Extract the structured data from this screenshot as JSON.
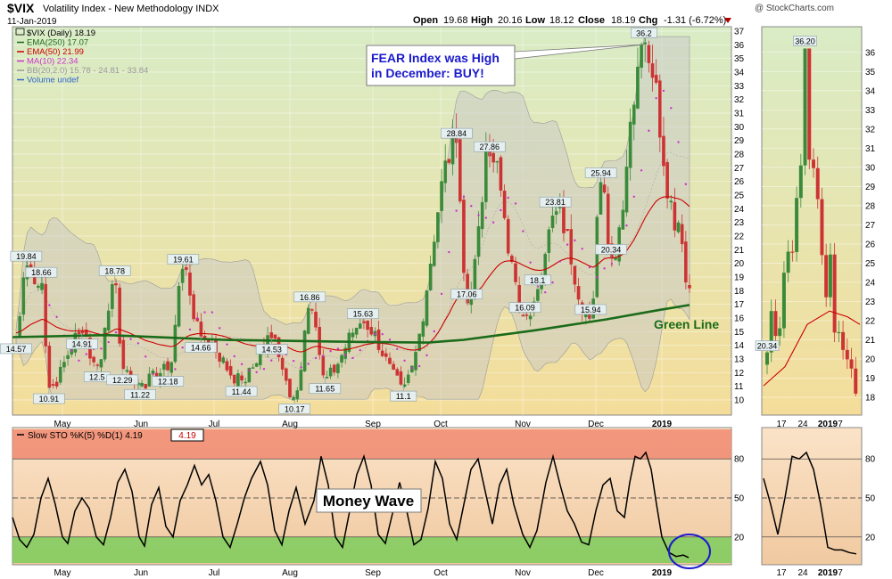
{
  "header": {
    "symbol": "$VIX",
    "name": "Volatility Index - New Methodology INDX",
    "date": "11-Jan-2019",
    "copyright": "@ StockCharts.com",
    "open_label": "Open",
    "open": "19.68",
    "high_label": "High",
    "high": "20.16",
    "low_label": "Low",
    "low": "18.12",
    "close_label": "Close",
    "close": "18.19",
    "chg_label": "Chg",
    "chg": "-1.31 (-6.72%)"
  },
  "legend": [
    {
      "text": "$VIX (Daily) 18.19",
      "color": "#000000"
    },
    {
      "text": "EMA(250) 17.07",
      "color": "#1a6b1a"
    },
    {
      "text": "EMA(50) 21.99",
      "color": "#cc0000"
    },
    {
      "text": "MA(10) 22.34",
      "color": "#cc33cc"
    },
    {
      "text": "BB(20,2.0) 15.78 - 24.81 - 33.84",
      "color": "#999999"
    },
    {
      "text": "Volume undef",
      "color": "#3366cc"
    }
  ],
  "annotations": {
    "callout_line1": "FEAR Index was High",
    "callout_line2": "in December: BUY!",
    "green_line": "Green Line",
    "money_wave": "Money Wave"
  },
  "stoch_legend": {
    "text": "Slow STO %K(5) %D(1) 4.19",
    "value": "4.19"
  },
  "colors": {
    "up": "#3a8a3a",
    "down": "#cc3333",
    "ema250": "#1a6b1a",
    "ema50": "#cc0000",
    "ma10": "#cc33cc",
    "bb_fill": "#c8c8c8",
    "overbought": "#f08a70",
    "oversold": "#7ccc5c",
    "callout": "#1a1acc",
    "circle": "#1a1acc"
  },
  "chart_data": [
    {
      "type": "candlestick",
      "title": "$VIX (Daily)",
      "x_labels": [
        "May",
        "Jun",
        "Jul",
        "Aug",
        "Sep",
        "Oct",
        "Nov",
        "Dec",
        "2019"
      ],
      "y_ticks": [
        10,
        11,
        12,
        13,
        14,
        15,
        16,
        17,
        18,
        19,
        20,
        21,
        22,
        23,
        24,
        25,
        26,
        27,
        28,
        29,
        30,
        31,
        32,
        33,
        34,
        35,
        36,
        37
      ],
      "ylim": [
        10,
        37
      ],
      "date_range": [
        "2018-04-20",
        "2019-01-11"
      ],
      "labeled_points": [
        {
          "date": "2018-04-20",
          "value": 14.57
        },
        {
          "date": "2018-04-24",
          "value": 19.84
        },
        {
          "date": "2018-04-30",
          "value": 18.66
        },
        {
          "date": "2018-05-03",
          "value": 10.91
        },
        {
          "date": "2018-05-16",
          "value": 14.91
        },
        {
          "date": "2018-05-22",
          "value": 12.5
        },
        {
          "date": "2018-05-29",
          "value": 18.78
        },
        {
          "date": "2018-06-01",
          "value": 12.29
        },
        {
          "date": "2018-06-08",
          "value": 11.22
        },
        {
          "date": "2018-06-19",
          "value": 12.18
        },
        {
          "date": "2018-06-25",
          "value": 19.61
        },
        {
          "date": "2018-07-02",
          "value": 14.66
        },
        {
          "date": "2018-07-18",
          "value": 11.44
        },
        {
          "date": "2018-07-30",
          "value": 14.53
        },
        {
          "date": "2018-08-08",
          "value": 10.17
        },
        {
          "date": "2018-08-14",
          "value": 16.86
        },
        {
          "date": "2018-08-20",
          "value": 11.65
        },
        {
          "date": "2018-09-04",
          "value": 15.63
        },
        {
          "date": "2018-09-20",
          "value": 11.1
        },
        {
          "date": "2018-10-11",
          "value": 28.84
        },
        {
          "date": "2018-10-15",
          "value": 17.06
        },
        {
          "date": "2018-10-24",
          "value": 27.86
        },
        {
          "date": "2018-11-07",
          "value": 16.09
        },
        {
          "date": "2018-11-12",
          "value": 18.1
        },
        {
          "date": "2018-11-19",
          "value": 23.81
        },
        {
          "date": "2018-12-03",
          "value": 15.94
        },
        {
          "date": "2018-12-07",
          "value": 25.94
        },
        {
          "date": "2018-12-11",
          "value": 20.34
        },
        {
          "date": "2018-12-24",
          "value": 36.2
        }
      ],
      "series": [
        {
          "name": "EMA(250)",
          "last": 17.07
        },
        {
          "name": "EMA(50)",
          "last": 21.99
        },
        {
          "name": "MA(10)",
          "last": 22.34
        },
        {
          "name": "BB(20,2.0)",
          "lower": 15.78,
          "middle": 24.81,
          "upper": 33.84
        }
      ],
      "close": 18.19
    },
    {
      "type": "candlestick",
      "title": "$VIX zoom",
      "x_labels": [
        "17",
        "24",
        "2019",
        "7"
      ],
      "y_ticks": [
        18,
        19,
        20,
        21,
        22,
        23,
        24,
        25,
        26,
        27,
        28,
        29,
        30,
        31,
        32,
        33,
        34,
        35,
        36
      ],
      "ylim": [
        18,
        36.5
      ],
      "labeled_points": [
        {
          "date": "2018-12-11",
          "value": 20.34
        },
        {
          "date": "2018-12-24",
          "value": 36.2
        }
      ]
    },
    {
      "type": "line",
      "title": "Slow STO %K(5) %D(1)",
      "y_ticks": [
        20,
        50,
        80
      ],
      "ylim": [
        0,
        100
      ],
      "last": 4.19,
      "overbought": 80,
      "oversold": 20
    },
    {
      "type": "line",
      "title": "Slow STO zoom",
      "x_labels": [
        "17",
        "24",
        "2019",
        "7"
      ],
      "y_ticks": [
        20,
        50,
        80
      ],
      "ylim": [
        0,
        100
      ]
    }
  ]
}
